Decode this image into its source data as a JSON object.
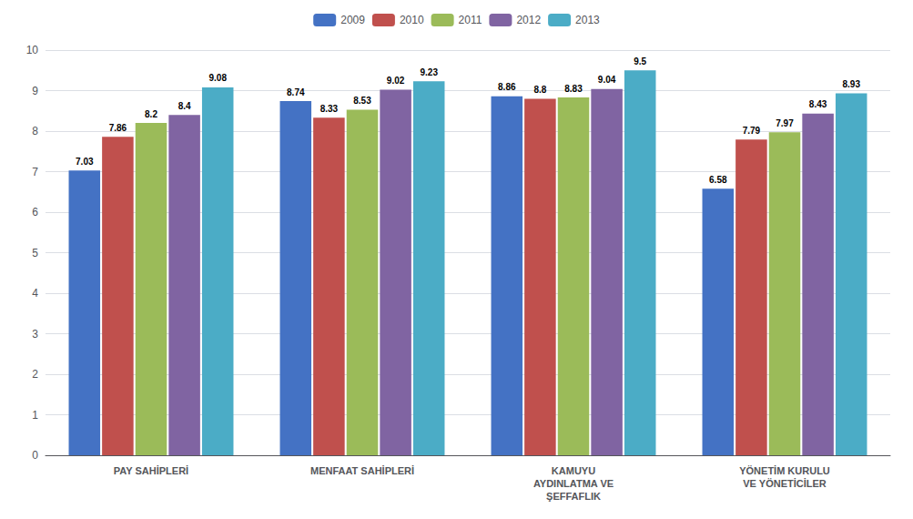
{
  "chart_data": {
    "type": "bar",
    "categories": [
      "PAY SAHİPLERİ",
      "MENFAAT SAHİPLERİ",
      "KAMUYU\nAYDINLATMA VE\nŞEFFAFLIK",
      "YÖNETİM KURULU\nVE YÖNETİCİLER"
    ],
    "series": [
      {
        "name": "2009",
        "color": "#4472C4",
        "values": [
          7.03,
          8.74,
          8.86,
          6.58
        ]
      },
      {
        "name": "2010",
        "color": "#C0504D",
        "values": [
          7.86,
          8.33,
          8.8,
          7.79
        ]
      },
      {
        "name": "2011",
        "color": "#9BBB59",
        "values": [
          8.2,
          8.53,
          8.83,
          7.97
        ]
      },
      {
        "name": "2012",
        "color": "#8064A2",
        "values": [
          8.4,
          9.02,
          9.04,
          8.43
        ]
      },
      {
        "name": "2013",
        "color": "#4BACC6",
        "values": [
          9.08,
          9.23,
          9.5,
          8.93
        ]
      }
    ],
    "ylim": [
      0,
      10
    ],
    "yticks": [
      0,
      1,
      2,
      3,
      4,
      5,
      6,
      7,
      8,
      9,
      10
    ],
    "grid": true,
    "legend": "top",
    "data_labels": true
  }
}
